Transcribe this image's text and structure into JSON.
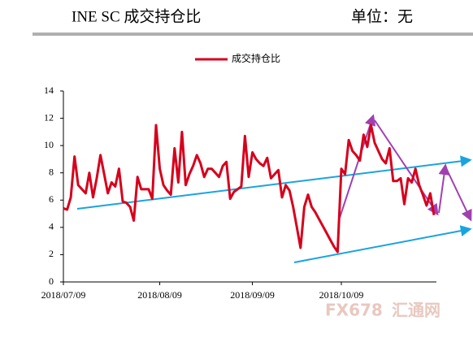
{
  "header": {
    "title": "INE SC 成交持仓比",
    "unit": "单位：无"
  },
  "watermark": {
    "brand": "FX678",
    "name": "汇通网"
  },
  "chart_data": {
    "type": "line",
    "categories": [
      "2018/07/09",
      null,
      null,
      null,
      null,
      null,
      null,
      null,
      null,
      null,
      null,
      null,
      null,
      null,
      null,
      null,
      null,
      null,
      null,
      null,
      null,
      null,
      null,
      null,
      null,
      null,
      "2018/08/09",
      null,
      null,
      null,
      null,
      null,
      null,
      null,
      null,
      null,
      null,
      null,
      null,
      null,
      null,
      null,
      null,
      null,
      null,
      null,
      null,
      null,
      null,
      null,
      null,
      "2018/09/09",
      null,
      null,
      null,
      null,
      null,
      null,
      null,
      null,
      null,
      null,
      null,
      null,
      null,
      null,
      null,
      null,
      null,
      null,
      null,
      null,
      null,
      null,
      null,
      "2018/10/09",
      null,
      null,
      null,
      null,
      null,
      null,
      null,
      null,
      null,
      null,
      null,
      null,
      null,
      null,
      null,
      null,
      null,
      null,
      null,
      null,
      null,
      null,
      null,
      null,
      null
    ],
    "series": [
      {
        "name": "成交持仓比",
        "color": "#d6001c",
        "values": [
          5.4,
          5.3,
          6.2,
          9.2,
          7.1,
          6.8,
          6.5,
          8.0,
          6.2,
          7.6,
          9.3,
          7.9,
          6.5,
          7.3,
          7.0,
          8.3,
          5.9,
          5.8,
          5.5,
          4.5,
          7.7,
          6.8,
          6.8,
          6.8,
          6.1,
          11.5,
          8.3,
          7.1,
          6.7,
          6.4,
          9.8,
          7.3,
          11.0,
          7.1,
          7.9,
          8.5,
          9.3,
          8.7,
          7.7,
          8.3,
          8.3,
          8.0,
          7.7,
          8.5,
          8.8,
          6.1,
          6.6,
          6.8,
          7.0,
          10.7,
          7.7,
          9.5,
          9.0,
          8.7,
          8.5,
          9.1,
          7.6,
          7.9,
          8.2,
          6.2,
          7.1,
          6.7,
          5.5,
          4.0,
          2.5,
          5.5,
          6.4,
          5.5,
          5.1,
          4.6,
          4.1,
          3.6,
          3.1,
          2.6,
          2.2,
          8.3,
          7.9,
          10.4,
          9.6,
          9.3,
          8.9,
          10.8,
          9.9,
          11.5,
          10.2,
          9.6,
          9.0,
          8.7,
          9.8,
          7.4,
          7.4,
          7.6,
          5.7,
          7.6,
          7.3,
          8.3,
          7.1,
          6.4,
          5.6,
          6.5,
          4.9
        ]
      }
    ],
    "ylim": [
      0,
      14
    ],
    "yticks": [
      0,
      2,
      4,
      6,
      8,
      10,
      12,
      14
    ],
    "grid": false,
    "legend": "top"
  }
}
